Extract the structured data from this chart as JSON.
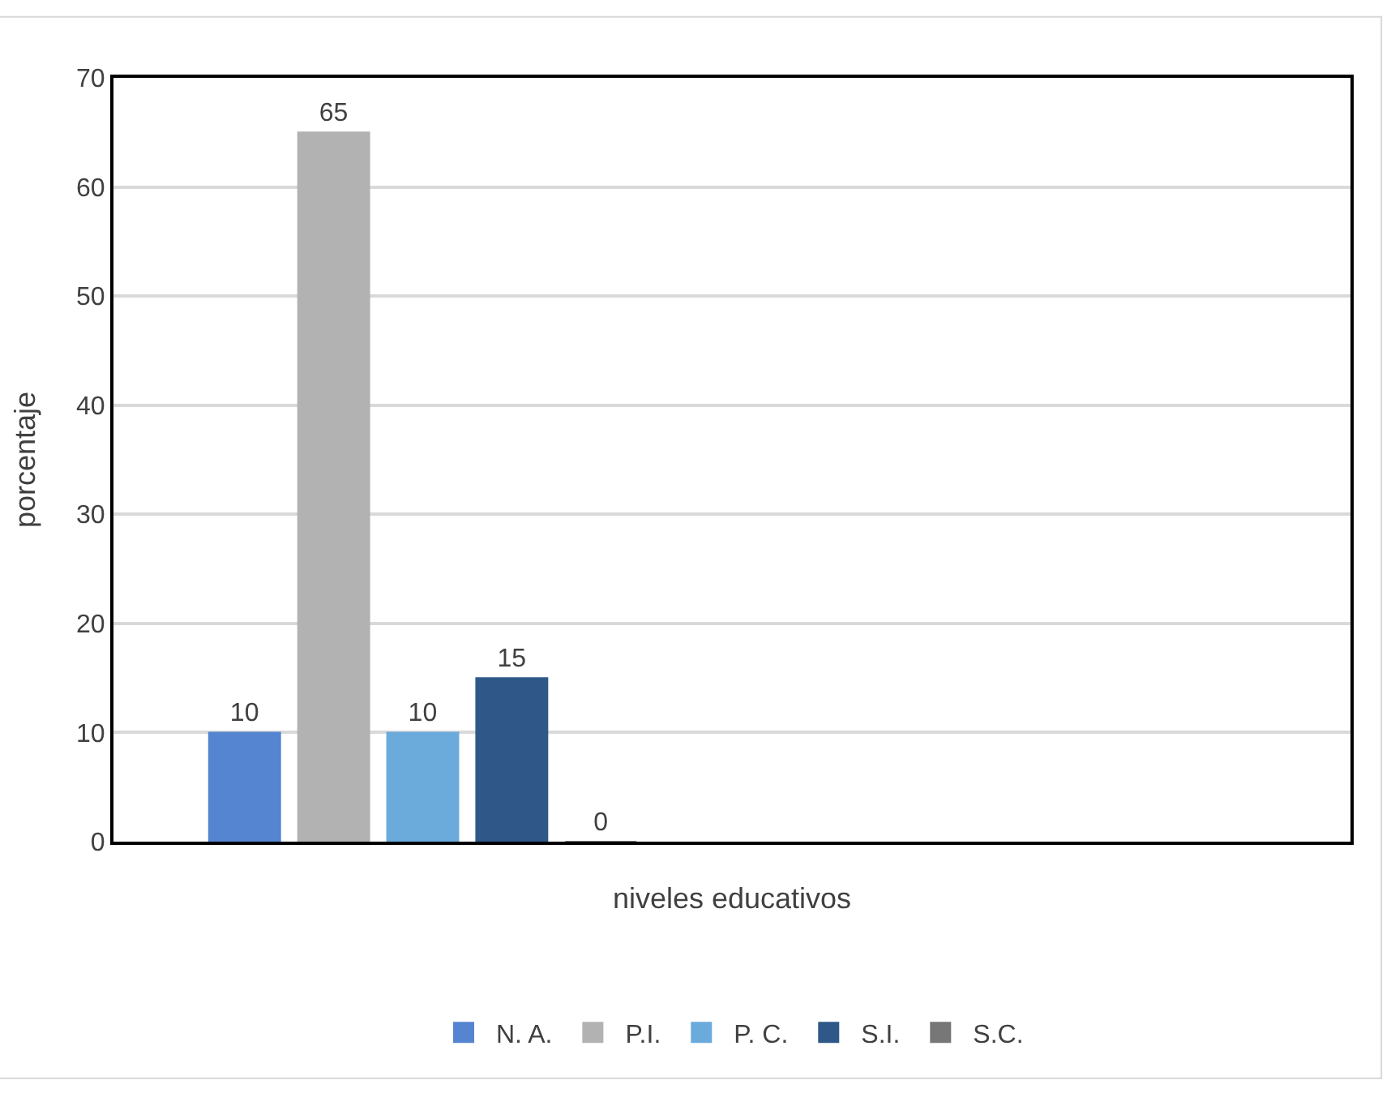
{
  "chart_data": {
    "type": "bar",
    "xlabel": "niveles educativos",
    "ylabel": "porcentaje",
    "categories": [
      null,
      null
    ],
    "series": [
      {
        "name": "N. A.",
        "color": "#5585d0",
        "values": [
          10,
          null
        ]
      },
      {
        "name": "P.I.",
        "color": "#b2b2b2",
        "values": [
          65,
          null
        ]
      },
      {
        "name": "P. C.",
        "color": "#6aabdc",
        "values": [
          10,
          null
        ]
      },
      {
        "name": "S.I.",
        "color": "#2f5889",
        "values": [
          15,
          null
        ]
      },
      {
        "name": "S.C.",
        "color": "#777777",
        "values": [
          0,
          null
        ]
      }
    ],
    "ylim": [
      0,
      70
    ],
    "yticks": [
      0,
      10,
      20,
      30,
      40,
      50,
      60,
      70
    ],
    "grid": "y",
    "legend": "bottom",
    "data_labels": true
  }
}
